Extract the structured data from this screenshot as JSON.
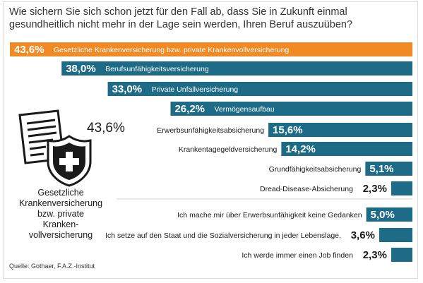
{
  "question": "Wie sichern Sie sich schon jetzt für den Fall ab, dass Sie in Zukunft einmal gesundheitlich nicht mehr in der Lage sein werden, Ihren Beruf auszuüben?",
  "highlight": {
    "value_label": "43,6%",
    "caption": "Gesetzliche Krankenversicherung bzw. private Krankenvollversicherung"
  },
  "source": "Quelle: Gothaer, F.A.Z.-Institut",
  "colors": {
    "orange": "#f08a24",
    "teal": "#1d6b86",
    "divider": "#c8d6dc"
  },
  "icon_names": [
    "document-icon",
    "shield-cross-icon"
  ],
  "chart_data": {
    "type": "bar",
    "orientation": "horizontal",
    "title": "",
    "xlabel": "",
    "ylabel": "",
    "xlim": [
      0,
      43.6
    ],
    "grid": false,
    "legend": "none",
    "categories": [
      "Gesetzliche Krankenversicherung bzw. private Krankenvollversicherung",
      "Berufsunfähigkeitsversicherung",
      "Private Unfallversicherung",
      "Vermögensaufbau",
      "Erwerbsunfähigkeitsabsicherung",
      "Krankentagegeldversicherung",
      "Grundfähigkeitsabsicherung",
      "Dread-Disease-Absicherung",
      "Ich mache mir über Erwerbsunfähigkeit keine Gedanken",
      "Ich setze auf den Staat und die Sozialversicherung in jeder Lebenslage.",
      "Ich werde immer einen Job finden"
    ],
    "values": [
      43.6,
      38.0,
      33.0,
      26.2,
      15.6,
      14.2,
      5.1,
      2.3,
      5.0,
      3.6,
      2.3
    ],
    "value_labels": [
      "43,6%",
      "38,0%",
      "33,0%",
      "26,2%",
      "15,6%",
      "14,2%",
      "5,1%",
      "2,3%",
      "5,0%",
      "3,6%",
      "2,3%"
    ],
    "highlighted_index": 0
  },
  "icon_block": {
    "value_label": "43,6%",
    "label_lines": [
      "Gesetzliche",
      "Krankenversicherung",
      "bzw. private",
      "Kranken-",
      "vollversicherung"
    ]
  }
}
